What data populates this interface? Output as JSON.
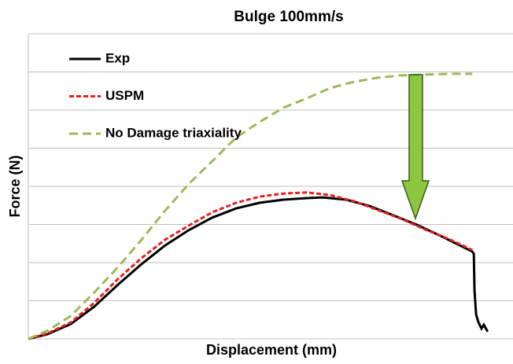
{
  "chart_data": {
    "type": "line",
    "title": "Bulge 100mm/s",
    "xlabel": "Displacement (mm)",
    "ylabel": "Force (N)",
    "xlim": [
      0,
      12.6
    ],
    "ylim": [
      0,
      8
    ],
    "yticks": [
      0,
      1,
      2,
      3,
      4,
      5,
      6,
      7,
      8
    ],
    "grid": true,
    "legend": "upper left",
    "series": [
      {
        "name": "Exp",
        "color": "#000000",
        "dash": "solid",
        "x": [
          0,
          0.49,
          1.1,
          1.71,
          2.32,
          2.93,
          3.54,
          4.15,
          4.76,
          5.38,
          5.99,
          6.6,
          7.21,
          7.62,
          8.23,
          8.84,
          9.45,
          10.06,
          10.67,
          11.49,
          11.53,
          11.55,
          11.59,
          11.65,
          11.73,
          11.79,
          11.89
        ],
        "values": [
          0,
          0.12,
          0.39,
          0.85,
          1.42,
          1.96,
          2.45,
          2.85,
          3.18,
          3.42,
          3.57,
          3.65,
          3.69,
          3.71,
          3.65,
          3.48,
          3.24,
          2.99,
          2.7,
          2.29,
          2.23,
          1.26,
          0.64,
          0.43,
          0.27,
          0.37,
          0.19
        ]
      },
      {
        "name": "USPM",
        "color": "#e8201e",
        "dash": "short",
        "x": [
          0,
          0.49,
          1.1,
          1.71,
          2.32,
          2.93,
          3.54,
          4.15,
          4.76,
          5.38,
          5.99,
          6.6,
          7.21,
          7.82,
          8.43,
          9.04,
          9.65,
          10.26,
          10.88,
          11.49
        ],
        "values": [
          0,
          0.14,
          0.43,
          0.95,
          1.57,
          2.12,
          2.6,
          2.97,
          3.32,
          3.57,
          3.73,
          3.81,
          3.84,
          3.77,
          3.61,
          3.38,
          3.15,
          2.87,
          2.62,
          2.33
        ]
      },
      {
        "name": "No Damage triaxiality",
        "color": "#9bbb59",
        "dash": "long",
        "x": [
          0,
          0.49,
          1.1,
          1.71,
          2.32,
          2.93,
          3.54,
          4.15,
          4.76,
          5.38,
          5.99,
          6.6,
          7.21,
          7.82,
          8.43,
          9.04,
          9.65,
          10.26,
          10.88,
          11.49
        ],
        "values": [
          0,
          0.21,
          0.6,
          1.22,
          1.88,
          2.6,
          3.36,
          4.06,
          4.66,
          5.28,
          5.69,
          6.06,
          6.31,
          6.58,
          6.74,
          6.85,
          6.91,
          6.93,
          6.95,
          6.95
        ]
      }
    ]
  }
}
